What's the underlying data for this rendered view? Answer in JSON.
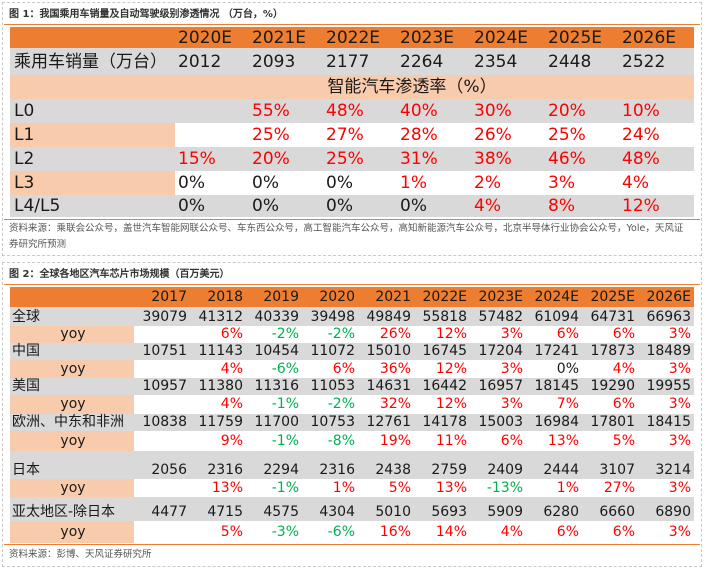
{
  "colors": {
    "orange": "#ED7D31",
    "peach": "#F8CBAD",
    "gray": "#D9D9D9",
    "red": "#FF0000",
    "green": "#00B050",
    "black": "#1a1a1a"
  },
  "figure1": {
    "title": "图 1：我国乘用车销量及自动驾驶级别渗透情况 （万台，%）",
    "years": [
      "2020E",
      "2021E",
      "2022E",
      "2023E",
      "2024E",
      "2025E",
      "2026E"
    ],
    "sales": {
      "label": "乘用车销量（万台）",
      "values": [
        "2012",
        "2093",
        "2177",
        "2264",
        "2354",
        "2448",
        "2522"
      ]
    },
    "penetration_title": "智能汽车渗透率（%）",
    "levels": [
      {
        "label": "L0",
        "values": [
          "",
          "55%",
          "48%",
          "40%",
          "30%",
          "20%",
          "10%"
        ]
      },
      {
        "label": "L1",
        "values": [
          "",
          "25%",
          "27%",
          "28%",
          "26%",
          "25%",
          "24%"
        ]
      },
      {
        "label": "L2",
        "values": [
          "15%",
          "20%",
          "25%",
          "31%",
          "38%",
          "46%",
          "48%"
        ]
      },
      {
        "label": "L3",
        "values": [
          "0%",
          "0%",
          "0%",
          "1%",
          "2%",
          "3%",
          "4%"
        ]
      },
      {
        "label": "L4/L5",
        "values": [
          "0%",
          "0%",
          "0%",
          "0%",
          "4%",
          "8%",
          "12%"
        ]
      }
    ],
    "source": "资料来源：乘联会公众号，盖世汽车智能网联公众号、车东西公众号，高工智能汽车公众号，高知新能源汽车公众号，北京半导体行业协会公众号，Yole，天风证券研究所预测"
  },
  "figure2": {
    "title": "图 2：全球各地区汽车芯片市场规模（百万美元）",
    "years": [
      "2017",
      "2018",
      "2019",
      "2020",
      "2021",
      "2022E",
      "2023E",
      "2024E",
      "2025E",
      "2026E"
    ],
    "yoy_label": "yoy",
    "regions": [
      {
        "label": "全球",
        "values": [
          "39079",
          "41312",
          "40339",
          "39498",
          "49849",
          "55818",
          "57482",
          "61094",
          "64731",
          "66963"
        ],
        "yoy": [
          "",
          "6%",
          "-2%",
          "-2%",
          "26%",
          "12%",
          "3%",
          "6%",
          "6%",
          "3%"
        ]
      },
      {
        "label": "中国",
        "values": [
          "10751",
          "11143",
          "10454",
          "11072",
          "15010",
          "16745",
          "17204",
          "17241",
          "17873",
          "18489"
        ],
        "yoy": [
          "",
          "4%",
          "-6%",
          "6%",
          "36%",
          "12%",
          "3%",
          "0%",
          "4%",
          "3%"
        ]
      },
      {
        "label": "美国",
        "values": [
          "10957",
          "11380",
          "11316",
          "11053",
          "14631",
          "16442",
          "16957",
          "18145",
          "19290",
          "19955"
        ],
        "yoy": [
          "",
          "4%",
          "-1%",
          "-2%",
          "32%",
          "12%",
          "3%",
          "7%",
          "6%",
          "3%"
        ]
      },
      {
        "label": "欧洲、中东和非洲",
        "values": [
          "10838",
          "11759",
          "11700",
          "10753",
          "12761",
          "14178",
          "15003",
          "16984",
          "17801",
          "18415"
        ],
        "yoy": [
          "",
          "9%",
          "-1%",
          "-8%",
          "19%",
          "11%",
          "6%",
          "13%",
          "5%",
          "3%"
        ]
      },
      {
        "label": "日本",
        "values": [
          "2056",
          "2316",
          "2294",
          "2316",
          "2438",
          "2759",
          "2409",
          "2444",
          "3107",
          "3214"
        ],
        "yoy": [
          "",
          "13%",
          "-1%",
          "1%",
          "5%",
          "13%",
          "-13%",
          "1%",
          "27%",
          "3%"
        ]
      },
      {
        "label": "亚太地区-除日本",
        "values": [
          "4477",
          "4715",
          "4575",
          "4304",
          "5010",
          "5693",
          "5909",
          "6280",
          "6660",
          "6890"
        ],
        "yoy": [
          "",
          "5%",
          "-3%",
          "-6%",
          "16%",
          "14%",
          "4%",
          "6%",
          "6%",
          "3%"
        ]
      }
    ],
    "source": "资料来源：彭博、天风证券研究所"
  }
}
